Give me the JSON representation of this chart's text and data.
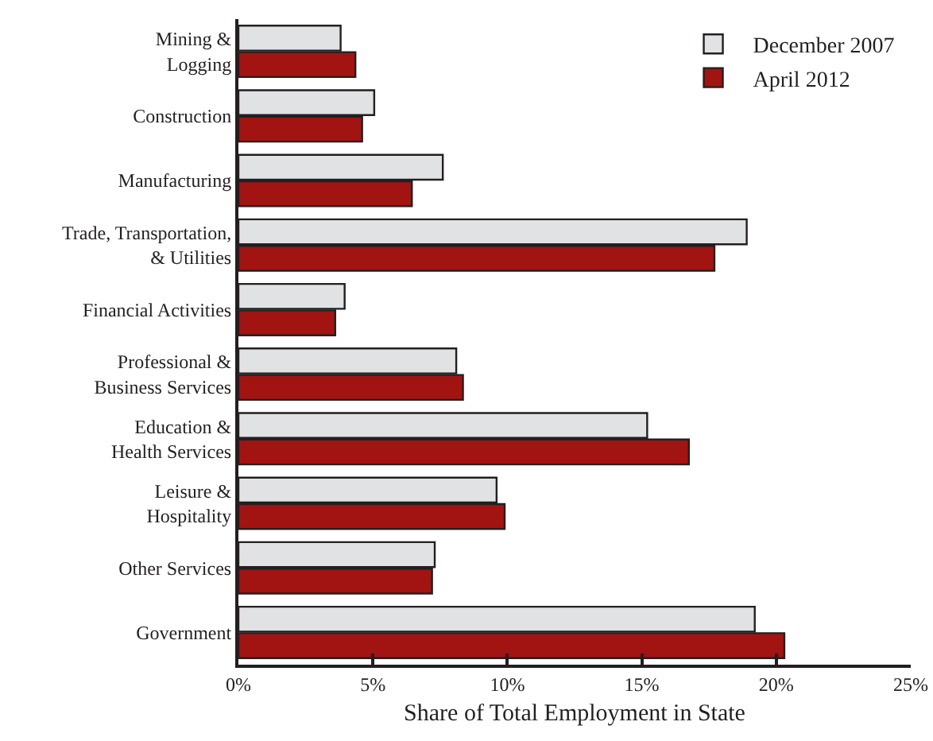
{
  "chart_data": {
    "type": "bar",
    "orientation": "horizontal",
    "xlabel": "Share of Total Employment in State",
    "categories": [
      "Mining &\nLogging",
      "Construction",
      "Manufacturing",
      "Trade, Transportation,\n& Utilities",
      "Financial Activities",
      "Professional &\nBusiness Services",
      "Education &\nHealth Services",
      "Leisure &\nHospitality",
      "Other Services",
      "Government"
    ],
    "series": [
      {
        "name": "December 2007",
        "color": "#e1e2e4",
        "values": [
          3.8,
          5.05,
          7.6,
          18.9,
          3.95,
          8.1,
          15.2,
          9.6,
          7.3,
          19.2
        ]
      },
      {
        "name": "April 2012",
        "color": "#a11412",
        "values": [
          4.35,
          4.6,
          6.45,
          17.7,
          3.6,
          8.35,
          16.75,
          9.9,
          7.2,
          20.3
        ]
      }
    ],
    "xlim": [
      0,
      25
    ],
    "xticks": [
      {
        "value": 0,
        "label": "0%"
      },
      {
        "value": 5,
        "label": "5%"
      },
      {
        "value": 10,
        "label": "10%"
      },
      {
        "value": 15,
        "label": "15%"
      },
      {
        "value": 20,
        "label": "20%"
      },
      {
        "value": 25,
        "label": "25%"
      }
    ],
    "grid": false,
    "legend": "top right"
  }
}
